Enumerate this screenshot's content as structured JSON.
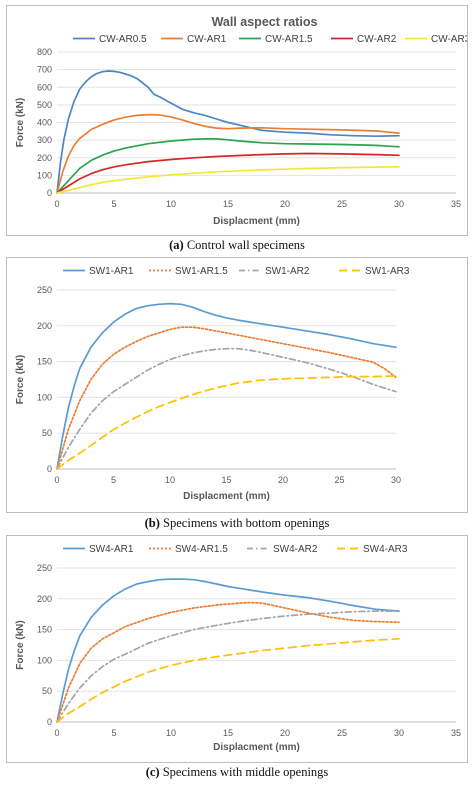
{
  "captions": [
    {
      "letter": "(a)",
      "text": " Control wall specimens"
    },
    {
      "letter": "(b)",
      "text": " Specimens with bottom openings"
    },
    {
      "letter": "(c)",
      "text": " Specimens with middle openings"
    }
  ],
  "chart_data": [
    {
      "type": "line",
      "title": "Wall aspect ratios",
      "xlabel": "Displacment (mm)",
      "ylabel": "Force (kN)",
      "xlim": [
        0,
        35
      ],
      "ylim": [
        0,
        800
      ],
      "xticks": [
        "0",
        "5",
        "10",
        "15",
        "20",
        "25",
        "30",
        "35"
      ],
      "yticks": [
        "0",
        "100",
        "200",
        "300",
        "400",
        "500",
        "600",
        "700",
        "800"
      ],
      "grid": true,
      "legend": "top",
      "series": [
        {
          "name": "CW-AR0.5",
          "color": "#4a86c5",
          "dash": "",
          "x": [
            0,
            0.3,
            0.6,
            1,
            1.5,
            2,
            2.5,
            3,
            3.5,
            4,
            4.5,
            5,
            5.5,
            6,
            6.5,
            7,
            7.5,
            8,
            8.5,
            9,
            10,
            11,
            12,
            13,
            14,
            15,
            16,
            17,
            18,
            19,
            20,
            22,
            24,
            26,
            28,
            30
          ],
          "y": [
            0,
            170,
            300,
            420,
            520,
            590,
            630,
            660,
            678,
            688,
            692,
            690,
            685,
            675,
            665,
            650,
            625,
            600,
            560,
            545,
            510,
            475,
            455,
            440,
            420,
            400,
            385,
            370,
            355,
            350,
            345,
            340,
            330,
            325,
            322,
            325
          ]
        },
        {
          "name": "CW-AR1",
          "color": "#ed7d31",
          "dash": "",
          "x": [
            0,
            0.5,
            1,
            1.5,
            2,
            3,
            4,
            5,
            6,
            7,
            8,
            9,
            10,
            11,
            12,
            13,
            14,
            15,
            16,
            18,
            20,
            22,
            25,
            28,
            30
          ],
          "y": [
            0,
            120,
            210,
            270,
            310,
            360,
            390,
            415,
            430,
            440,
            445,
            443,
            432,
            415,
            395,
            378,
            368,
            365,
            368,
            370,
            365,
            362,
            358,
            352,
            340
          ]
        },
        {
          "name": "CW-AR1.5",
          "color": "#2ea24e",
          "dash": "",
          "x": [
            0,
            1,
            2,
            3,
            4,
            5,
            6,
            8,
            10,
            12,
            13,
            14,
            15,
            16,
            18,
            20,
            22,
            25,
            28,
            30
          ],
          "y": [
            0,
            70,
            140,
            185,
            215,
            238,
            255,
            280,
            295,
            305,
            307,
            307,
            302,
            295,
            285,
            280,
            278,
            275,
            270,
            262
          ]
        },
        {
          "name": "CW-AR2",
          "color": "#d62728",
          "dash": "",
          "x": [
            0,
            1,
            2,
            3,
            4,
            5,
            6,
            8,
            10,
            12,
            14,
            16,
            18,
            20,
            22,
            25,
            28,
            30
          ],
          "y": [
            0,
            40,
            80,
            110,
            132,
            148,
            160,
            178,
            190,
            200,
            207,
            213,
            218,
            222,
            224,
            222,
            218,
            214
          ]
        },
        {
          "name": "CW-AR3",
          "color": "#f2e834",
          "dash": "",
          "x": [
            0,
            1,
            2,
            3,
            4,
            5,
            6,
            8,
            10,
            12,
            14,
            16,
            18,
            20,
            22,
            25,
            28,
            30
          ],
          "y": [
            0,
            15,
            32,
            47,
            60,
            70,
            78,
            92,
            103,
            112,
            120,
            126,
            131,
            135,
            139,
            144,
            147,
            148
          ]
        }
      ]
    },
    {
      "type": "line",
      "title": "",
      "xlabel": "Displacment (mm)",
      "ylabel": "Force (kN)",
      "xlim": [
        0,
        30
      ],
      "ylim": [
        0,
        250
      ],
      "xticks": [
        "0",
        "5",
        "10",
        "15",
        "20",
        "25",
        "30"
      ],
      "yticks": [
        "0",
        "50",
        "100",
        "150",
        "200",
        "250"
      ],
      "grid": true,
      "legend": "top",
      "series": [
        {
          "name": "SW1-AR1",
          "color": "#5b9bd5",
          "dash": "",
          "x": [
            0,
            0.5,
            1,
            1.5,
            2,
            3,
            4,
            5,
            6,
            7,
            8,
            9,
            10,
            11,
            12,
            13,
            14,
            15,
            16,
            18,
            20,
            22,
            24,
            26,
            28,
            30
          ],
          "y": [
            0,
            45,
            85,
            115,
            140,
            170,
            190,
            205,
            216,
            224,
            228,
            230,
            231,
            230,
            226,
            220,
            215,
            211,
            208,
            203,
            198,
            193,
            188,
            182,
            175,
            170
          ]
        },
        {
          "name": "SW1-AR1.5",
          "color": "#ed7d31",
          "dash": "2,2",
          "x": [
            0,
            1,
            2,
            3,
            4,
            5,
            6,
            7,
            8,
            9,
            10,
            11,
            12,
            13,
            14,
            16,
            18,
            20,
            22,
            24,
            26,
            28,
            29,
            30
          ],
          "y": [
            0,
            55,
            95,
            125,
            146,
            160,
            170,
            178,
            185,
            190,
            195,
            198,
            198,
            196,
            193,
            187,
            181,
            175,
            169,
            163,
            156,
            149,
            140,
            128
          ]
        },
        {
          "name": "SW1-AR2",
          "color": "#a5a5a5",
          "dash": "6,3,1.5,3",
          "x": [
            0,
            1,
            2,
            3,
            4,
            5,
            6,
            7,
            8,
            9,
            10,
            11,
            12,
            13,
            14,
            15,
            16,
            17,
            18,
            20,
            22,
            24,
            26,
            28,
            30
          ],
          "y": [
            0,
            30,
            55,
            78,
            95,
            108,
            118,
            128,
            138,
            146,
            153,
            158,
            162,
            165,
            167,
            168,
            168,
            166,
            163,
            156,
            149,
            140,
            130,
            118,
            108
          ]
        },
        {
          "name": "SW1-AR3",
          "color": "#ffc000",
          "dash": "8,5",
          "x": [
            0,
            1,
            2,
            3,
            4,
            5,
            6,
            7,
            8,
            9,
            10,
            12,
            14,
            16,
            18,
            20,
            22,
            24,
            26,
            28,
            30
          ],
          "y": [
            0,
            12,
            22,
            33,
            44,
            55,
            64,
            72,
            80,
            87,
            93,
            104,
            113,
            120,
            124,
            126,
            127,
            128,
            129,
            129,
            130
          ]
        }
      ]
    },
    {
      "type": "line",
      "title": "",
      "xlabel": "Displacment (mm)",
      "ylabel": "Force (kN)",
      "xlim": [
        0,
        35
      ],
      "ylim": [
        0,
        250
      ],
      "xticks": [
        "0",
        "5",
        "10",
        "15",
        "20",
        "25",
        "30",
        "35"
      ],
      "yticks": [
        "0",
        "50",
        "100",
        "150",
        "200",
        "250"
      ],
      "grid": true,
      "legend": "top",
      "series": [
        {
          "name": "SW4-AR1",
          "color": "#5b9bd5",
          "dash": "",
          "x": [
            0,
            0.5,
            1,
            1.5,
            2,
            3,
            4,
            5,
            6,
            7,
            8,
            9,
            10,
            11,
            12,
            13,
            14,
            15,
            16,
            18,
            20,
            22,
            24,
            26,
            28,
            30
          ],
          "y": [
            0,
            45,
            85,
            115,
            140,
            170,
            190,
            205,
            216,
            224,
            228,
            231,
            232,
            232,
            231,
            228,
            224,
            220,
            217,
            211,
            206,
            202,
            196,
            189,
            183,
            180
          ]
        },
        {
          "name": "SW4-AR1.5",
          "color": "#ed7d31",
          "dash": "2,2",
          "x": [
            0,
            1,
            2,
            3,
            4,
            5,
            6,
            8,
            10,
            12,
            14,
            16,
            17,
            18,
            20,
            22,
            24,
            26,
            28,
            30
          ],
          "y": [
            0,
            55,
            95,
            120,
            135,
            145,
            155,
            168,
            178,
            185,
            190,
            193,
            194,
            193,
            185,
            177,
            170,
            165,
            163,
            162
          ]
        },
        {
          "name": "SW4-AR2",
          "color": "#a5a5a5",
          "dash": "6,3,1.5,3",
          "x": [
            0,
            1,
            2,
            3,
            4,
            5,
            6,
            8,
            10,
            12,
            14,
            16,
            18,
            20,
            22,
            24,
            26,
            28,
            30
          ],
          "y": [
            0,
            30,
            55,
            75,
            90,
            102,
            110,
            128,
            140,
            150,
            157,
            163,
            168,
            172,
            175,
            177,
            179,
            180,
            180
          ]
        },
        {
          "name": "SW4-AR3",
          "color": "#ffc000",
          "dash": "8,5",
          "x": [
            0,
            1,
            2,
            3,
            4,
            5,
            6,
            8,
            10,
            12,
            14,
            16,
            18,
            20,
            22,
            24,
            26,
            28,
            30
          ],
          "y": [
            0,
            14,
            25,
            37,
            48,
            57,
            66,
            81,
            92,
            100,
            106,
            111,
            116,
            120,
            124,
            127,
            130,
            133,
            135
          ]
        }
      ]
    }
  ]
}
